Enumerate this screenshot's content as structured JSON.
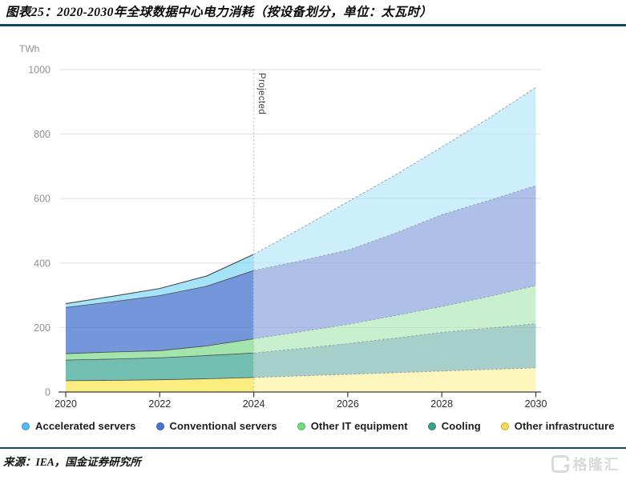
{
  "header": {
    "title": "图表25：2020-2030年全球数据中心电力消耗（按设备划分，单位：太瓦时）"
  },
  "footer": {
    "source": "来源：IEA，国金证券研究所"
  },
  "watermark": {
    "text": "格隆汇"
  },
  "theme": {
    "accent_line": "#0E4A66",
    "grid": "#E9E9E9",
    "grid_overlay": "rgba(0,0,0,0.05)",
    "axis": "#3C3C3C",
    "y_tick_label": "#909090",
    "x_tick_label": "#2E2E2E",
    "hist_boundary": "#4A4A4A",
    "proj_boundary": "#9AA8B0",
    "projected_line": "#C4C4C4"
  },
  "chart_data": {
    "type": "area",
    "stacked": true,
    "title": "2020-2030 年全球数据中心电力消耗（按设备划分）",
    "ylabel": "TWh",
    "xlabel": "",
    "x": [
      2020,
      2021,
      2022,
      2023,
      2024,
      2025,
      2026,
      2027,
      2028,
      2029,
      2030
    ],
    "x_tick_labels": [
      "2020",
      "2022",
      "2024",
      "2026",
      "2028",
      "2030"
    ],
    "y_ticks": [
      0,
      200,
      400,
      600,
      800,
      1000
    ],
    "ylim": [
      0,
      1000
    ],
    "grid": true,
    "legend_position": "bottom",
    "projected_from": 2024,
    "annotation": "Projected",
    "series": [
      {
        "key": "other-infrastructure",
        "name": "Other infrastructure",
        "legend_color": "#F2DD52",
        "legend_border": "#C2AF35",
        "fill_hist": "#FBEE7E",
        "fill_proj": "#FCF6BC",
        "values": [
          35,
          36,
          38,
          41,
          45,
          50,
          55,
          60,
          65,
          70,
          75
        ]
      },
      {
        "key": "cooling",
        "name": "Cooling",
        "legend_color": "#3BA08E",
        "legend_border": "#2C7A6C",
        "fill_hist": "#72BEB1",
        "fill_proj": "#A5CFC8",
        "values": [
          64,
          66,
          68,
          72,
          76,
          85,
          95,
          107,
          120,
          128,
          137
        ]
      },
      {
        "key": "other-it-equipment",
        "name": "Other IT equipment",
        "legend_color": "#6FDE82",
        "legend_border": "#4CAD5F",
        "fill_hist": "#A3E4AC",
        "fill_proj": "#C9F0CE",
        "values": [
          20,
          22,
          22,
          30,
          44,
          52,
          60,
          70,
          80,
          98,
          118
        ]
      },
      {
        "key": "conventional-servers",
        "name": "Conventional servers",
        "legend_color": "#4A74D2",
        "legend_border": "#3558A8",
        "fill_hist": "#7496DB",
        "fill_proj": "#AEBFE8",
        "values": [
          143,
          156,
          171,
          185,
          212,
          220,
          230,
          255,
          285,
          298,
          310
        ]
      },
      {
        "key": "accelerated-servers",
        "name": "Accelerated servers",
        "legend_color": "#55BBEB",
        "legend_border": "#3D93BF",
        "fill_hist": "#A5E3F8",
        "fill_proj": "#CDEEFB",
        "values": [
          12,
          17,
          22,
          32,
          50,
          100,
          150,
          180,
          210,
          255,
          305
        ]
      }
    ],
    "legend_order": [
      "accelerated-servers",
      "conventional-servers",
      "other-it-equipment",
      "cooling",
      "other-infrastructure"
    ]
  }
}
